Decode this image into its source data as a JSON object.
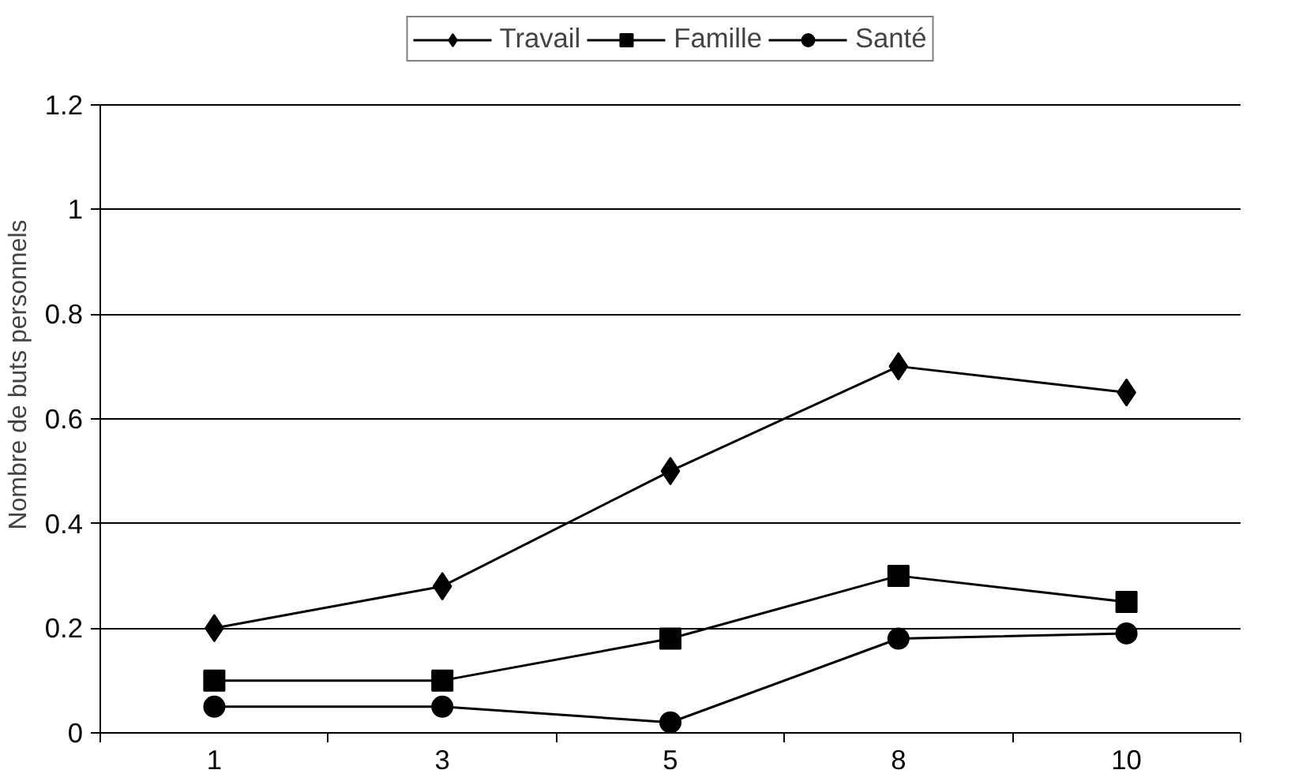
{
  "chart_data": {
    "type": "line",
    "ylabel": "Nombre de buts personnels",
    "categories": [
      "1",
      "3",
      "5",
      "8",
      "10"
    ],
    "series": [
      {
        "name": "Travail",
        "color": "#000000",
        "marker": "diamond",
        "values": [
          0.2,
          0.28,
          0.5,
          0.7,
          0.65
        ]
      },
      {
        "name": "Famille",
        "color": "#000000",
        "marker": "square",
        "values": [
          0.1,
          0.1,
          0.18,
          0.3,
          0.25
        ]
      },
      {
        "name": "Santé",
        "color": "#000000",
        "marker": "circle",
        "values": [
          0.05,
          0.05,
          0.02,
          0.18,
          0.19
        ]
      }
    ],
    "ylim": [
      0,
      1.2
    ],
    "yticks": [
      0,
      0.2,
      0.4,
      0.6,
      0.8,
      1,
      1.2
    ],
    "grid": "y",
    "legend": "top",
    "line_style": "solid"
  }
}
